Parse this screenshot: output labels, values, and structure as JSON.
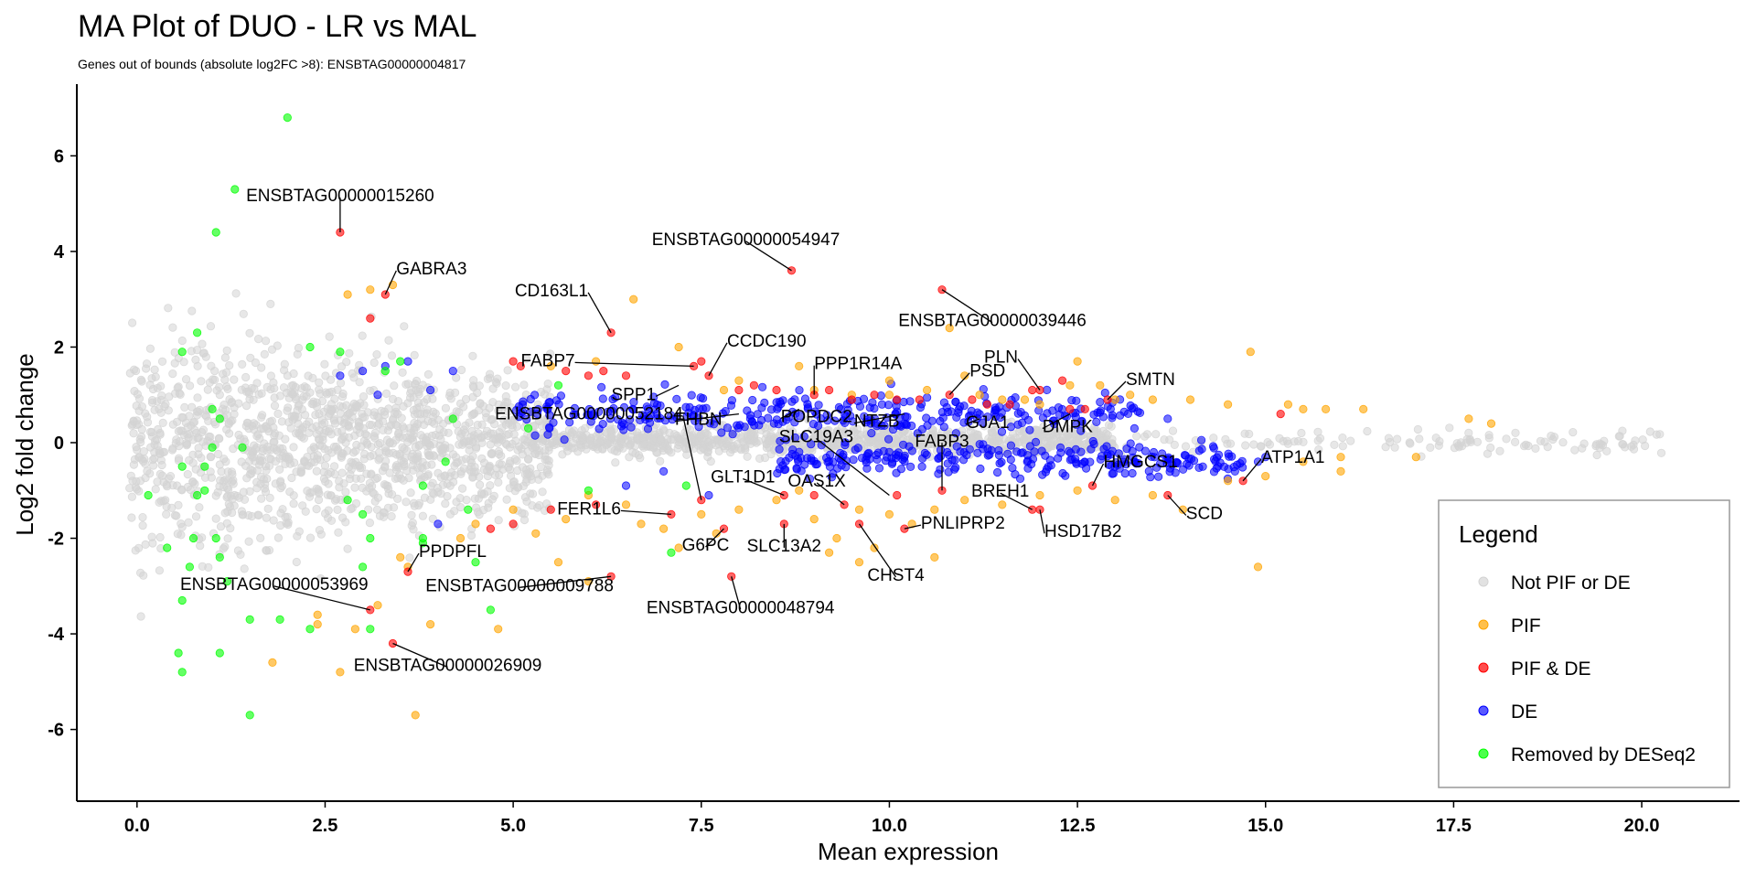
{
  "chart_data": {
    "type": "scatter",
    "title": "MA Plot of DUO - LR vs MAL",
    "subtitle": "Genes out of bounds (absolute log2FC >8):  ENSBTAG00000004817",
    "xlabel": "Mean expression",
    "ylabel": "Log2 fold change",
    "xlim": [
      -0.8,
      21.3
    ],
    "ylim": [
      -7.5,
      7.5
    ],
    "x_ticks": [
      0,
      2.5,
      5,
      7.5,
      10,
      12.5,
      15,
      17.5,
      20
    ],
    "x_tick_labels": [
      "0.0",
      "2.5",
      "5.0",
      "7.5",
      "10.0",
      "12.5",
      "15.0",
      "17.5",
      "20.0"
    ],
    "y_ticks": [
      -6,
      -4,
      -2,
      0,
      2,
      4,
      6
    ],
    "y_tick_labels": [
      "-6",
      "-4",
      "-2",
      "0",
      "2",
      "4",
      "6"
    ],
    "grid": false,
    "legend": {
      "title": "Legend",
      "position": "right",
      "entries": [
        "Not PIF or DE",
        "PIF",
        "PIF & DE",
        "DE",
        "Removed by DESeq2"
      ]
    },
    "colors": {
      "not_pif_or_de": "#d3d3d3",
      "pif": "#ffa500",
      "pif_de": "#ff0000",
      "de": "#0000ff",
      "removed": "#00ff00"
    },
    "series": [
      {
        "name": "Removed by DESeq2",
        "points": [
          [
            2.0,
            6.8
          ],
          [
            1.3,
            5.3
          ],
          [
            1.05,
            4.4
          ],
          [
            0.15,
            -1.1
          ],
          [
            0.6,
            1.9
          ],
          [
            0.8,
            2.3
          ],
          [
            0.6,
            -0.5
          ],
          [
            1.0,
            0.7
          ],
          [
            1.0,
            -0.1
          ],
          [
            0.9,
            -0.5
          ],
          [
            1.4,
            -0.1
          ],
          [
            1.1,
            0.5
          ],
          [
            0.9,
            -1.0
          ],
          [
            0.8,
            -1.1
          ],
          [
            0.75,
            -2.0
          ],
          [
            0.4,
            -2.2
          ],
          [
            1.05,
            -2.0
          ],
          [
            1.1,
            -2.4
          ],
          [
            0.7,
            -2.6
          ],
          [
            1.2,
            -2.9
          ],
          [
            0.6,
            -3.3
          ],
          [
            0.55,
            -4.4
          ],
          [
            0.6,
            -4.8
          ],
          [
            1.1,
            -4.4
          ],
          [
            1.5,
            -3.7
          ],
          [
            1.9,
            -3.7
          ],
          [
            2.3,
            -3.9
          ],
          [
            1.5,
            -5.7
          ],
          [
            2.3,
            2.0
          ],
          [
            2.7,
            1.9
          ],
          [
            3.5,
            1.7
          ],
          [
            3.3,
            1.5
          ],
          [
            4.2,
            0.5
          ],
          [
            4.1,
            -0.4
          ],
          [
            4.4,
            -1.4
          ],
          [
            3.8,
            -0.9
          ],
          [
            3.8,
            -2.0
          ],
          [
            3.8,
            -2.1
          ],
          [
            2.8,
            -1.2
          ],
          [
            3.0,
            -1.5
          ],
          [
            3.1,
            -2.0
          ],
          [
            3.0,
            -2.6
          ],
          [
            4.5,
            -2.5
          ],
          [
            5.2,
            0.3
          ],
          [
            6.0,
            -1.0
          ],
          [
            4.7,
            -3.5
          ],
          [
            3.1,
            -3.9
          ],
          [
            7.1,
            -2.3
          ],
          [
            5.6,
            1.2
          ],
          [
            7.3,
            -0.9
          ]
        ]
      },
      {
        "name": "PIF",
        "points": [
          [
            2.8,
            3.1
          ],
          [
            3.1,
            3.2
          ],
          [
            3.4,
            3.3
          ],
          [
            6.6,
            3.0
          ],
          [
            10.8,
            2.4
          ],
          [
            14.8,
            1.9
          ],
          [
            12.5,
            1.7
          ],
          [
            5.5,
            1.6
          ],
          [
            6.1,
            1.7
          ],
          [
            7.2,
            2.0
          ],
          [
            8.8,
            1.6
          ],
          [
            12.4,
            1.2
          ],
          [
            11.2,
            1.0
          ],
          [
            12.0,
            0.8
          ],
          [
            13.0,
            0.9
          ],
          [
            13.5,
            0.9
          ],
          [
            14.0,
            0.9
          ],
          [
            14.5,
            0.8
          ],
          [
            15.3,
            0.8
          ],
          [
            15.5,
            0.7
          ],
          [
            15.8,
            0.7
          ],
          [
            16.3,
            0.7
          ],
          [
            17.7,
            0.5
          ],
          [
            18.0,
            0.4
          ],
          [
            9.0,
            1.1
          ],
          [
            9.5,
            1.0
          ],
          [
            10.0,
            1.0
          ],
          [
            10.5,
            1.1
          ],
          [
            11.5,
            0.9
          ],
          [
            12.8,
            1.2
          ],
          [
            4.5,
            -1.7
          ],
          [
            5.0,
            -1.4
          ],
          [
            5.3,
            -1.9
          ],
          [
            5.7,
            -1.6
          ],
          [
            6.0,
            -1.1
          ],
          [
            6.5,
            -1.3
          ],
          [
            6.7,
            -1.7
          ],
          [
            7.0,
            -1.8
          ],
          [
            7.2,
            -2.2
          ],
          [
            7.5,
            -1.5
          ],
          [
            7.7,
            -1.9
          ],
          [
            8.0,
            -1.4
          ],
          [
            8.5,
            -1.2
          ],
          [
            8.8,
            -1.0
          ],
          [
            9.0,
            -1.6
          ],
          [
            9.3,
            -2.0
          ],
          [
            9.6,
            -1.4
          ],
          [
            10.0,
            -1.5
          ],
          [
            10.3,
            -1.7
          ],
          [
            10.6,
            -1.4
          ],
          [
            11.0,
            -1.2
          ],
          [
            11.5,
            -1.3
          ],
          [
            12.0,
            -1.1
          ],
          [
            12.5,
            -1.0
          ],
          [
            13.0,
            -1.2
          ],
          [
            13.5,
            -1.1
          ],
          [
            13.9,
            -1.4
          ],
          [
            14.5,
            -0.8
          ],
          [
            15.0,
            -0.7
          ],
          [
            15.5,
            -0.4
          ],
          [
            16.0,
            -0.6
          ],
          [
            14.9,
            -2.6
          ],
          [
            10.6,
            -2.4
          ],
          [
            9.8,
            -2.2
          ],
          [
            9.6,
            -2.5
          ],
          [
            9.2,
            -2.3
          ],
          [
            2.7,
            -4.8
          ],
          [
            3.7,
            -5.7
          ],
          [
            1.8,
            -4.6
          ],
          [
            2.4,
            -3.6
          ],
          [
            2.4,
            -3.8
          ],
          [
            2.9,
            -3.9
          ],
          [
            3.5,
            -2.4
          ],
          [
            3.6,
            -2.6
          ],
          [
            3.9,
            -3.8
          ],
          [
            4.8,
            -3.9
          ],
          [
            4.3,
            -2.0
          ],
          [
            6.0,
            -2.9
          ],
          [
            5.6,
            -2.5
          ],
          [
            3.2,
            -3.4
          ],
          [
            8.0,
            1.3
          ],
          [
            7.8,
            1.1
          ],
          [
            13.2,
            1.0
          ],
          [
            16.0,
            -0.3
          ],
          [
            17.0,
            -0.3
          ],
          [
            11.8,
            0.9
          ],
          [
            11.0,
            1.4
          ],
          [
            10.0,
            1.3
          ]
        ]
      },
      {
        "name": "PIF & DE",
        "points": [
          [
            2.7,
            4.4
          ],
          [
            3.3,
            3.1
          ],
          [
            3.1,
            2.6
          ],
          [
            8.7,
            3.6
          ],
          [
            10.7,
            3.2
          ],
          [
            6.3,
            2.3
          ],
          [
            5.1,
            1.6
          ],
          [
            5.0,
            1.7
          ],
          [
            5.7,
            1.5
          ],
          [
            6.0,
            1.4
          ],
          [
            6.2,
            1.5
          ],
          [
            6.5,
            1.4
          ],
          [
            7.4,
            1.6
          ],
          [
            7.5,
            1.7
          ],
          [
            7.6,
            1.4
          ],
          [
            8.0,
            1.1
          ],
          [
            8.2,
            1.2
          ],
          [
            8.5,
            1.1
          ],
          [
            9.0,
            1.0
          ],
          [
            9.2,
            1.1
          ],
          [
            9.5,
            0.9
          ],
          [
            9.8,
            1.0
          ],
          [
            10.1,
            0.9
          ],
          [
            10.4,
            0.9
          ],
          [
            10.8,
            1.0
          ],
          [
            11.1,
            0.9
          ],
          [
            11.3,
            0.8
          ],
          [
            11.6,
            0.8
          ],
          [
            11.9,
            1.1
          ],
          [
            12.0,
            1.1
          ],
          [
            12.3,
            1.3
          ],
          [
            12.4,
            0.7
          ],
          [
            12.6,
            0.7
          ],
          [
            12.9,
            0.9
          ],
          [
            15.2,
            0.6
          ],
          [
            14.7,
            -0.8
          ],
          [
            13.7,
            -1.1
          ],
          [
            12.7,
            -0.9
          ],
          [
            12.0,
            -1.4
          ],
          [
            11.9,
            -1.4
          ],
          [
            10.7,
            -1.0
          ],
          [
            10.1,
            -1.1
          ],
          [
            10.2,
            -1.8
          ],
          [
            9.4,
            -1.3
          ],
          [
            9.6,
            -1.7
          ],
          [
            9.0,
            -1.1
          ],
          [
            8.6,
            -1.1
          ],
          [
            8.6,
            -1.7
          ],
          [
            7.8,
            -1.8
          ],
          [
            7.5,
            -1.2
          ],
          [
            7.1,
            -1.5
          ],
          [
            6.3,
            -2.8
          ],
          [
            7.9,
            -2.8
          ],
          [
            6.1,
            -1.3
          ],
          [
            5.5,
            -1.4
          ],
          [
            5.0,
            -1.7
          ],
          [
            4.7,
            -1.8
          ],
          [
            3.6,
            -2.7
          ],
          [
            3.4,
            -4.2
          ],
          [
            3.1,
            -3.5
          ]
        ]
      },
      {
        "name": "DE",
        "clusters": [
          {
            "x_range": [
              5.0,
              13.4
            ],
            "y_center": 0.6,
            "y_spread": 0.35,
            "count": 320
          },
          {
            "x_range": [
              8.5,
              14.7
            ],
            "y_center": -0.35,
            "y_spread": 0.3,
            "count": 260
          }
        ],
        "points": [
          [
            2.7,
            1.4
          ],
          [
            3.0,
            1.5
          ],
          [
            3.3,
            1.6
          ],
          [
            3.6,
            1.7
          ],
          [
            3.9,
            1.1
          ],
          [
            4.2,
            1.5
          ],
          [
            4.0,
            -1.7
          ],
          [
            3.2,
            1.0
          ],
          [
            14.9,
            -0.4
          ],
          [
            15.0,
            -0.3
          ],
          [
            13.7,
            0.5
          ],
          [
            7.6,
            -1.1
          ],
          [
            6.5,
            -0.9
          ],
          [
            7.0,
            -0.6
          ]
        ]
      },
      {
        "name": "Not PIF or DE",
        "clusters": [
          {
            "x_range": [
              -0.1,
              5.5
            ],
            "y_center": 0.0,
            "y_spread": 1.6,
            "count": 1400
          },
          {
            "x_range": [
              5.5,
              13.0
            ],
            "y_center": 0.05,
            "y_spread": 0.25,
            "count": 900
          },
          {
            "x_range": [
              13.0,
              20.3
            ],
            "y_center": 0.0,
            "y_spread": 0.2,
            "count": 120
          }
        ]
      }
    ],
    "annotations": [
      {
        "label": "ENSBTAG00000015260",
        "x": 2.7,
        "y": 4.4
      },
      {
        "label": "GABRA3",
        "x": 3.3,
        "y": 3.1
      },
      {
        "label": "ENSBTAG00000054947",
        "x": 8.7,
        "y": 3.6
      },
      {
        "label": "ENSBTAG00000039446",
        "x": 10.7,
        "y": 3.2
      },
      {
        "label": "CD163L1",
        "x": 6.3,
        "y": 2.3
      },
      {
        "label": "FABP7",
        "x": 7.4,
        "y": 1.6
      },
      {
        "label": "CCDC190",
        "x": 7.6,
        "y": 1.4
      },
      {
        "label": "PPP1R14A",
        "x": 9.0,
        "y": 1.0
      },
      {
        "label": "SPP1",
        "x": 7.2,
        "y": 1.2
      },
      {
        "label": "PSD",
        "x": 10.8,
        "y": 1.0
      },
      {
        "label": "PLN",
        "x": 12.0,
        "y": 1.1
      },
      {
        "label": "SMTN",
        "x": 12.9,
        "y": 0.9
      },
      {
        "label": "FHBN",
        "x": 8.0,
        "y": 0.6
      },
      {
        "label": "POPDC2",
        "x": 8.8,
        "y": 0.7
      },
      {
        "label": "NTZB",
        "x": 10.2,
        "y": 0.6
      },
      {
        "label": "GJA1",
        "x": 11.2,
        "y": 0.5
      },
      {
        "label": "DMPK",
        "x": 12.4,
        "y": 0.6
      },
      {
        "label": "ENSBTAG00000052184",
        "x": 7.5,
        "y": -1.2
      },
      {
        "label": "SLC19A3",
        "x": 10.0,
        "y": -1.1
      },
      {
        "label": "FABP3",
        "x": 10.7,
        "y": -1.0
      },
      {
        "label": "ATP1A1",
        "x": 14.7,
        "y": -0.8
      },
      {
        "label": "HMGCS1",
        "x": 12.7,
        "y": -0.9
      },
      {
        "label": "GLT1D1",
        "x": 8.6,
        "y": -1.1
      },
      {
        "label": "OAS1X",
        "x": 9.4,
        "y": -1.3
      },
      {
        "label": "BREH1",
        "x": 11.9,
        "y": -1.4
      },
      {
        "label": "FER1L6",
        "x": 7.1,
        "y": -1.5
      },
      {
        "label": "SCD",
        "x": 13.7,
        "y": -1.1
      },
      {
        "label": "HSD17B2",
        "x": 12.0,
        "y": -1.4
      },
      {
        "label": "PNLIPRP2",
        "x": 10.2,
        "y": -1.8
      },
      {
        "label": "G6PC",
        "x": 7.8,
        "y": -1.8
      },
      {
        "label": "SLC13A2",
        "x": 8.6,
        "y": -1.7
      },
      {
        "label": "CHST4",
        "x": 9.6,
        "y": -1.7
      },
      {
        "label": "PPDPFL",
        "x": 3.6,
        "y": -2.7
      },
      {
        "label": "ENSBTAG00000009788",
        "x": 6.3,
        "y": -2.8
      },
      {
        "label": "ENSBTAG00000048794",
        "x": 7.9,
        "y": -2.8
      },
      {
        "label": "ENSBTAG00000053969",
        "x": 3.1,
        "y": -3.5
      },
      {
        "label": "ENSBTAG00000026909",
        "x": 3.4,
        "y": -4.2
      }
    ]
  }
}
